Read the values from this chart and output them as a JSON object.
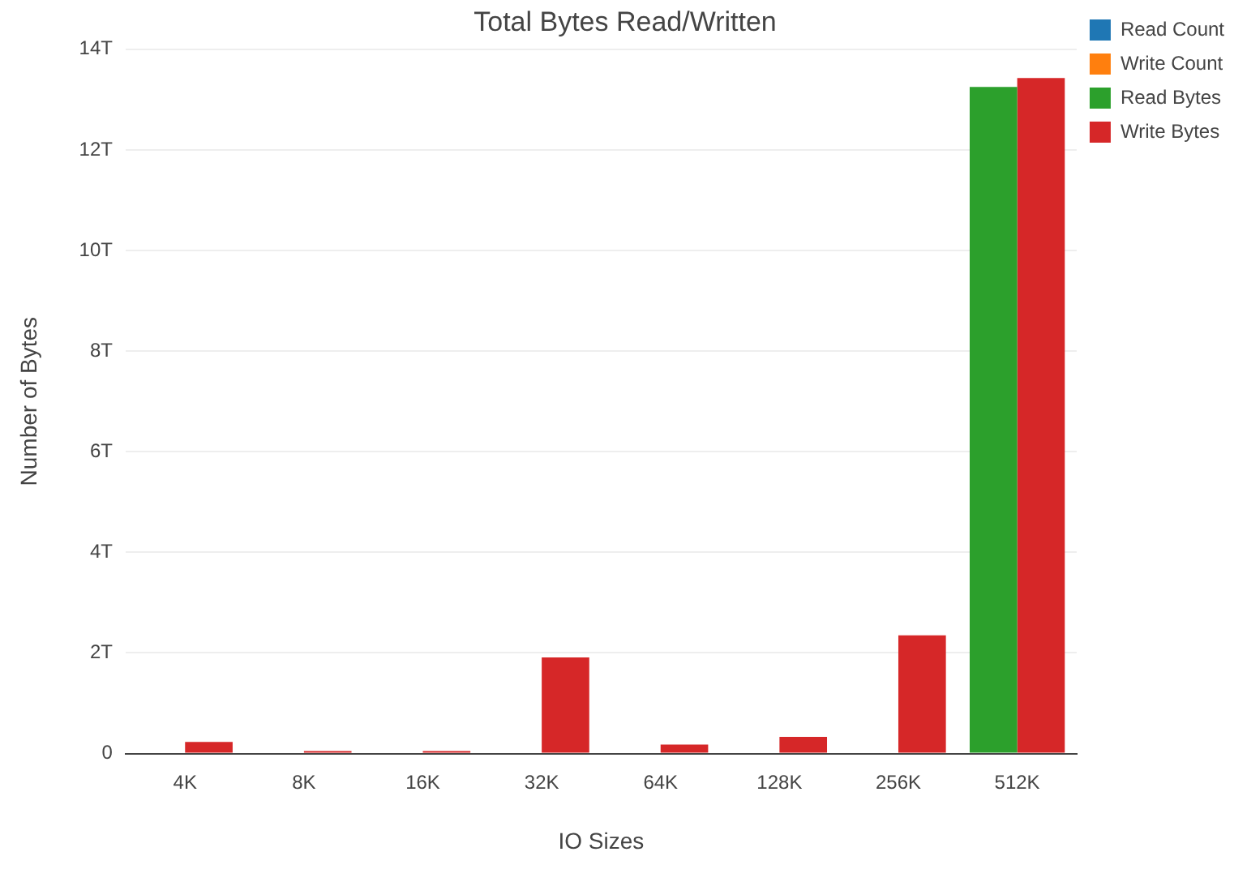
{
  "chart_data": {
    "type": "bar",
    "title": "Total Bytes Read/Written",
    "xlabel": "IO Sizes",
    "ylabel": "Number of Bytes",
    "categories": [
      "4K",
      "8K",
      "16K",
      "32K",
      "64K",
      "128K",
      "256K",
      "512K"
    ],
    "series": [
      {
        "name": "Read Count",
        "color": "#1f77b4",
        "values": [
          null,
          null,
          null,
          null,
          null,
          null,
          null,
          null
        ]
      },
      {
        "name": "Write Count",
        "color": "#ff7f0e",
        "values": [
          null,
          null,
          null,
          null,
          null,
          null,
          null,
          null
        ]
      },
      {
        "name": "Read Bytes",
        "color": "#2ca02c",
        "values": [
          0,
          0,
          0,
          0,
          0,
          0,
          0,
          13.25
        ]
      },
      {
        "name": "Write Bytes",
        "color": "#d62728",
        "values": [
          0.23,
          0.05,
          0.05,
          1.91,
          0.18,
          0.33,
          2.35,
          13.43
        ]
      }
    ],
    "ylim": [
      0,
      14
    ],
    "yticks": [
      0,
      {
        "value": 2,
        "label": "2T"
      },
      {
        "value": 4,
        "label": "4T"
      },
      {
        "value": 6,
        "label": "6T"
      },
      {
        "value": 8,
        "label": "8T"
      },
      {
        "value": 10,
        "label": "10T"
      },
      {
        "value": 12,
        "label": "12T"
      },
      {
        "value": 14,
        "label": "14T"
      }
    ],
    "grid": "y",
    "legend": "top right"
  }
}
